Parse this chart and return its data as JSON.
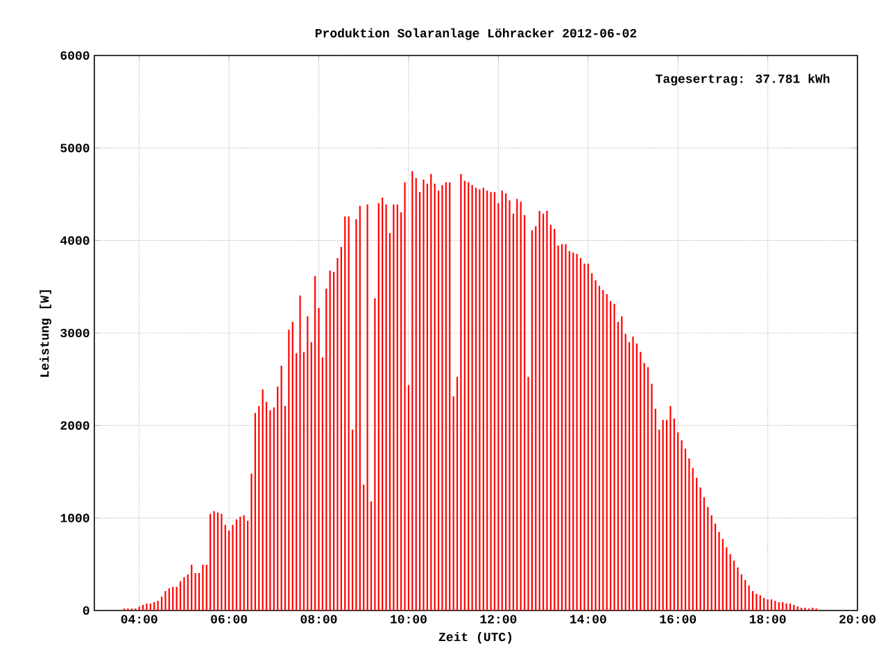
{
  "chart_data": {
    "type": "bar",
    "title": "Produktion Solaranlage Löhracker 2012-06-02",
    "xlabel": "Zeit (UTC)",
    "ylabel": "Leistung [W]",
    "annotations": [
      "Tagesertrag: 37.781 kWh"
    ],
    "color": "#ff0000",
    "grid": true,
    "xlim": [
      3,
      20
    ],
    "xticks": [
      {
        "value": 4,
        "label": "04:00"
      },
      {
        "value": 6,
        "label": "06:00"
      },
      {
        "value": 8,
        "label": "08:00"
      },
      {
        "value": 10,
        "label": "10:00"
      },
      {
        "value": 12,
        "label": "12:00"
      },
      {
        "value": 14,
        "label": "14:00"
      },
      {
        "value": 16,
        "label": "16:00"
      },
      {
        "value": 18,
        "label": "18:00"
      },
      {
        "value": 20,
        "label": "20:00"
      }
    ],
    "ylim": [
      0,
      6000
    ],
    "yticks": [
      0,
      1000,
      2000,
      3000,
      4000,
      5000,
      6000
    ],
    "x": [
      3.6667,
      3.75,
      3.8333,
      3.9167,
      4,
      4.0833,
      4.1667,
      4.25,
      4.3333,
      4.4167,
      4.5,
      4.5833,
      4.6667,
      4.75,
      4.8333,
      4.9167,
      5,
      5.0833,
      5.1667,
      5.25,
      5.3333,
      5.4167,
      5.5,
      5.5833,
      5.6667,
      5.75,
      5.8333,
      5.9167,
      6,
      6.0833,
      6.1667,
      6.25,
      6.3333,
      6.4167,
      6.5,
      6.5833,
      6.6667,
      6.75,
      6.8333,
      6.9167,
      7,
      7.0833,
      7.1667,
      7.25,
      7.3333,
      7.4167,
      7.5,
      7.5833,
      7.6667,
      7.75,
      7.8333,
      7.9167,
      8,
      8.0833,
      8.1667,
      8.25,
      8.3333,
      8.4167,
      8.5,
      8.5833,
      8.6667,
      8.75,
      8.8333,
      8.9167,
      9,
      9.0833,
      9.1667,
      9.25,
      9.3333,
      9.4167,
      9.5,
      9.5833,
      9.6667,
      9.75,
      9.8333,
      9.9167,
      10,
      10.0833,
      10.1667,
      10.25,
      10.3333,
      10.4167,
      10.5,
      10.5833,
      10.6667,
      10.75,
      10.8333,
      10.9167,
      11,
      11.0833,
      11.1667,
      11.25,
      11.3333,
      11.4167,
      11.5,
      11.5833,
      11.6667,
      11.75,
      11.8333,
      11.9167,
      12,
      12.0833,
      12.1667,
      12.25,
      12.3333,
      12.4167,
      12.5,
      12.5833,
      12.6667,
      12.75,
      12.8333,
      12.9167,
      13,
      13.0833,
      13.1667,
      13.25,
      13.3333,
      13.4167,
      13.5,
      13.5833,
      13.6667,
      13.75,
      13.8333,
      13.9167,
      14,
      14.0833,
      14.1667,
      14.25,
      14.3333,
      14.4167,
      14.5,
      14.5833,
      14.6667,
      14.75,
      14.8333,
      14.9167,
      15,
      15.0833,
      15.1667,
      15.25,
      15.3333,
      15.4167,
      15.5,
      15.5833,
      15.6667,
      15.75,
      15.8333,
      15.9167,
      16,
      16.0833,
      16.1667,
      16.25,
      16.3333,
      16.4167,
      16.5,
      16.5833,
      16.6667,
      16.75,
      16.8333,
      16.9167,
      17,
      17.0833,
      17.1667,
      17.25,
      17.3333,
      17.4167,
      17.5,
      17.5833,
      17.6667,
      17.75,
      17.8333,
      17.9167,
      18,
      18.0833,
      18.1667,
      18.25,
      18.3333,
      18.4167,
      18.5,
      18.5833,
      18.6667,
      18.75,
      18.8333,
      18.9167,
      19,
      19.0833
    ],
    "values": [
      20,
      20,
      20,
      20,
      40,
      60,
      75,
      75,
      90,
      105,
      150,
      210,
      240,
      255,
      255,
      315,
      360,
      390,
      495,
      405,
      405,
      495,
      495,
      1045,
      1075,
      1060,
      1045,
      925,
      865,
      925,
      985,
      1015,
      1030,
      970,
      1480,
      2135,
      2210,
      2390,
      2255,
      2165,
      2195,
      2420,
      2645,
      2210,
      3035,
      3120,
      2780,
      3405,
      2795,
      3180,
      2900,
      3615,
      3270,
      2735,
      3480,
      3675,
      3660,
      3810,
      3930,
      4260,
      4260,
      1955,
      4230,
      4375,
      1360,
      4390,
      1180,
      3375,
      4405,
      4465,
      4390,
      4080,
      4390,
      4390,
      4305,
      4630,
      2435,
      4750,
      4675,
      4525,
      4660,
      4615,
      4720,
      4615,
      4540,
      4600,
      4630,
      4630,
      2315,
      2525,
      4720,
      4645,
      4630,
      4600,
      4570,
      4555,
      4570,
      4540,
      4525,
      4525,
      4405,
      4540,
      4510,
      4435,
      4290,
      4450,
      4420,
      4275,
      2525,
      4110,
      4155,
      4320,
      4290,
      4320,
      4170,
      4125,
      3945,
      3960,
      3960,
      3885,
      3870,
      3855,
      3810,
      3750,
      3750,
      3645,
      3570,
      3510,
      3465,
      3420,
      3345,
      3315,
      3120,
      3180,
      2990,
      2900,
      2960,
      2885,
      2795,
      2675,
      2630,
      2450,
      2180,
      1955,
      2060,
      2060,
      2210,
      2075,
      1925,
      1840,
      1750,
      1645,
      1540,
      1435,
      1330,
      1225,
      1120,
      1030,
      940,
      850,
      775,
      685,
      610,
      540,
      465,
      390,
      330,
      270,
      210,
      180,
      165,
      135,
      120,
      120,
      105,
      90,
      90,
      75,
      75,
      60,
      45,
      30,
      30,
      20,
      30,
      20
    ]
  }
}
